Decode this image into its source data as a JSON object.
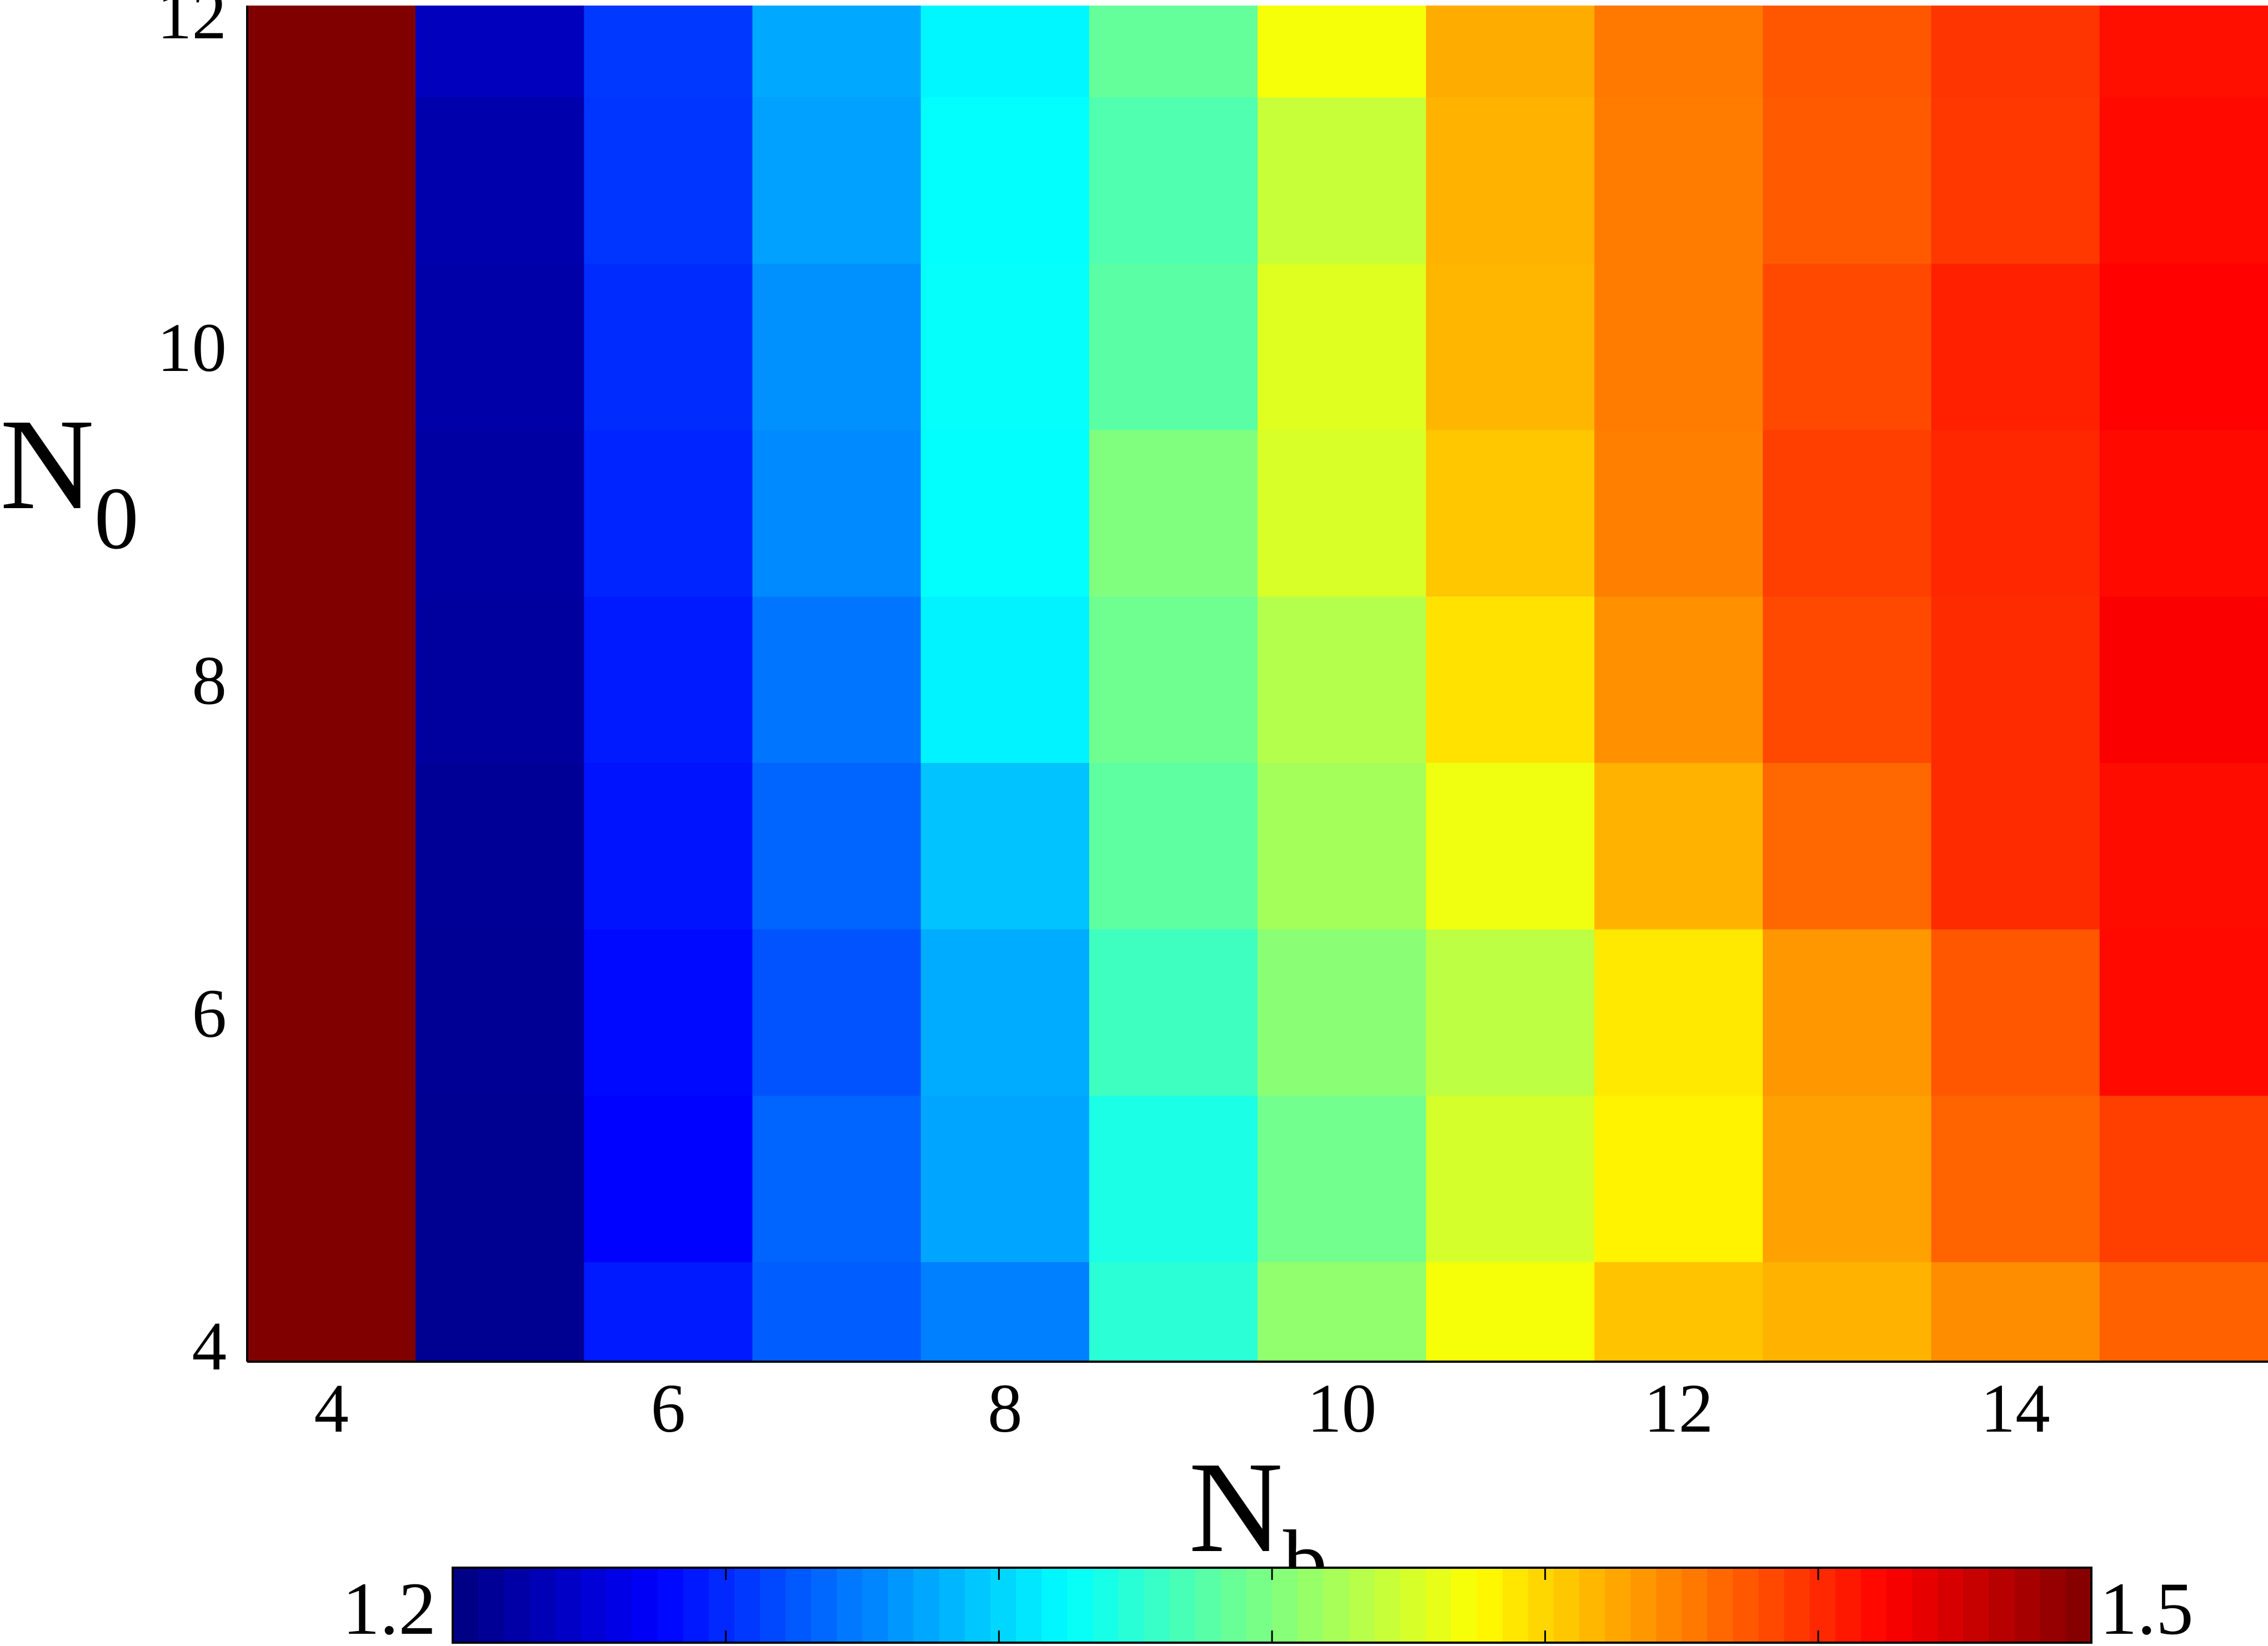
{
  "chart_data": {
    "type": "heatmap",
    "title": "",
    "xlabel": {
      "main": "N",
      "sub": "b"
    },
    "ylabel": {
      "main": "N",
      "sub": "0"
    },
    "x_centers": [
      4,
      5,
      6,
      7,
      8,
      9,
      10,
      11,
      12,
      13,
      14,
      15
    ],
    "y_centers": [
      4,
      5,
      6,
      7,
      8,
      9,
      10,
      11,
      12
    ],
    "xlim": [
      3.5,
      15.5
    ],
    "ylim": [
      3.9,
      12.05
    ],
    "x_ticks": [
      4,
      6,
      8,
      10,
      12,
      14
    ],
    "y_ticks": [
      4,
      6,
      8,
      10,
      12
    ],
    "values": [
      [
        1.5,
        1.205,
        1.245,
        1.265,
        1.275,
        1.325,
        1.355,
        1.385,
        1.405,
        1.41,
        1.421,
        1.434
      ],
      [
        1.5,
        1.205,
        1.238,
        1.267,
        1.286,
        1.32,
        1.346,
        1.375,
        1.391,
        1.415,
        1.433,
        1.444
      ],
      [
        1.5,
        1.206,
        1.24,
        1.262,
        1.288,
        1.331,
        1.353,
        1.368,
        1.394,
        1.418,
        1.437,
        1.46
      ],
      [
        1.5,
        1.207,
        1.243,
        1.267,
        1.295,
        1.34,
        1.361,
        1.383,
        1.41,
        1.432,
        1.45,
        1.459
      ],
      [
        1.5,
        1.209,
        1.245,
        1.272,
        1.309,
        1.345,
        1.365,
        1.396,
        1.42,
        1.441,
        1.45,
        1.464
      ],
      [
        1.5,
        1.21,
        1.248,
        1.278,
        1.313,
        1.35,
        1.376,
        1.404,
        1.425,
        1.444,
        1.451,
        1.46
      ],
      [
        1.5,
        1.212,
        1.25,
        1.28,
        1.314,
        1.339,
        1.378,
        1.409,
        1.426,
        1.441,
        1.453,
        1.462
      ],
      [
        1.5,
        1.213,
        1.253,
        1.285,
        1.313,
        1.336,
        1.371,
        1.41,
        1.426,
        1.436,
        1.446,
        1.46
      ],
      [
        1.5,
        1.218,
        1.254,
        1.287,
        1.31,
        1.342,
        1.385,
        1.412,
        1.427,
        1.437,
        1.447,
        1.458
      ]
    ],
    "colorbar": {
      "min": 1.2,
      "max": 1.5,
      "min_label": "1.2",
      "max_label": "1.5",
      "colormap": "jet",
      "levels": 64
    },
    "grid": false,
    "legend": "none"
  }
}
